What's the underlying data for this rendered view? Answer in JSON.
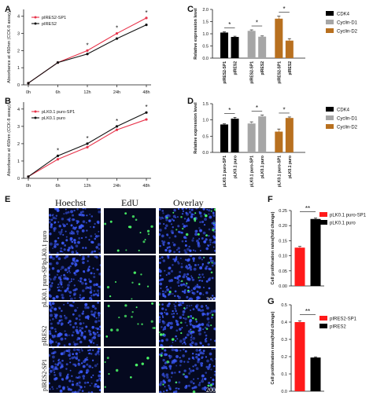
{
  "panel_letters": [
    "A",
    "B",
    "C",
    "D",
    "E",
    "F",
    "G"
  ],
  "chart_data": [
    {
      "id": "A",
      "type": "line",
      "x": [
        "0h",
        "6h",
        "12h",
        "24h",
        "48h"
      ],
      "series": [
        {
          "name": "pIRES2-SP1",
          "values": [
            0.1,
            1.3,
            2.0,
            3.0,
            3.9
          ],
          "color": "#e8334a"
        },
        {
          "name": "pIRES2",
          "values": [
            0.1,
            1.3,
            1.8,
            2.7,
            3.5
          ],
          "color": "#111111"
        }
      ],
      "ylabel": "Absorbance at 450nm (CCK-8 assay)",
      "yticks": [
        0,
        1,
        2,
        3,
        4
      ],
      "ylim": [
        0,
        4.4
      ],
      "sig": [
        {
          "x": 2,
          "t": "*"
        },
        {
          "x": 3,
          "t": "*"
        },
        {
          "x": 4,
          "t": "*"
        }
      ],
      "legend": "top-left"
    },
    {
      "id": "B",
      "type": "line",
      "x": [
        "0h",
        "6h",
        "12h",
        "24h",
        "48h"
      ],
      "series": [
        {
          "name": "pLK0.1 puro-SP1",
          "values": [
            0.1,
            1.1,
            1.8,
            2.8,
            3.4
          ],
          "color": "#e8334a"
        },
        {
          "name": "pLK0.1 puro",
          "values": [
            0.1,
            1.3,
            2.0,
            3.0,
            3.8
          ],
          "color": "#111111"
        }
      ],
      "ylabel": "Absorbance at 450nm (CCK-8 assay)",
      "yticks": [
        0,
        1,
        2,
        3,
        4
      ],
      "ylim": [
        0,
        4.4
      ],
      "sig": [
        {
          "x": 1,
          "t": "*"
        },
        {
          "x": 2,
          "t": "*"
        },
        {
          "x": 3,
          "t": "*"
        },
        {
          "x": 4,
          "t": "*"
        }
      ],
      "legend": "top-left"
    },
    {
      "id": "C",
      "type": "bar",
      "categories": [
        "pIRES2-SP1",
        "pIRES2",
        "pIRES2-SP1",
        "pIRES2",
        "pIRES2-SP1",
        "pIRES2"
      ],
      "values": [
        1.05,
        0.87,
        1.12,
        0.88,
        1.62,
        0.72
      ],
      "errors": [
        0.03,
        0.03,
        0.04,
        0.03,
        0.1,
        0.08
      ],
      "colors": [
        "#000000",
        "#000000",
        "#a6a6a6",
        "#a6a6a6",
        "#b8701f",
        "#b8701f"
      ],
      "legend_entries": [
        {
          "name": "CDK4",
          "color": "#000000"
        },
        {
          "name": "Cyclin-D1",
          "color": "#a6a6a6"
        },
        {
          "name": "Cyclin-D2",
          "color": "#b8701f"
        }
      ],
      "ylabel": "Relative expression level",
      "yticks": [
        0.0,
        0.5,
        1.0,
        1.5,
        2.0
      ],
      "ylim": [
        0,
        2.0
      ],
      "sig": [
        {
          "pair": [
            0,
            1
          ],
          "t": "*"
        },
        {
          "pair": [
            2,
            3
          ],
          "t": "*"
        },
        {
          "pair": [
            4,
            5
          ],
          "t": "*"
        }
      ]
    },
    {
      "id": "D",
      "type": "bar",
      "categories": [
        "pLK0.1 puro-SP1",
        "pLK0.1 puro",
        "pLK0.1 puro-SP1",
        "pLK0.1 puro",
        "pLK0.1 puro-SP1",
        "pLK0.1 puro"
      ],
      "values": [
        0.86,
        1.04,
        0.89,
        1.11,
        0.64,
        1.06
      ],
      "errors": [
        0.02,
        0.04,
        0.05,
        0.04,
        0.08,
        0.03
      ],
      "colors": [
        "#000000",
        "#000000",
        "#a6a6a6",
        "#a6a6a6",
        "#b8701f",
        "#b8701f"
      ],
      "legend_entries": [
        {
          "name": "CDK4",
          "color": "#000000"
        },
        {
          "name": "Cyclin-D1",
          "color": "#a6a6a6"
        },
        {
          "name": "Cyclin-D2",
          "color": "#b8701f"
        }
      ],
      "ylabel": "Relative expression level",
      "yticks": [
        0.0,
        0.5,
        1.0,
        1.5
      ],
      "ylim": [
        0,
        1.5
      ],
      "sig": [
        {
          "pair": [
            0,
            1
          ],
          "t": "*"
        },
        {
          "pair": [
            2,
            3
          ],
          "t": "*"
        },
        {
          "pair": [
            4,
            5
          ],
          "t": "*"
        }
      ]
    },
    {
      "id": "F",
      "type": "bar",
      "categories": [
        "pLK0.1 puro-SP1",
        "pLK0.1 puro"
      ],
      "values": [
        0.127,
        0.222
      ],
      "errors": [
        0.004,
        0.003
      ],
      "colors": [
        "#ff1a1a",
        "#000000"
      ],
      "ylabel": "Cell proliferation rates(fold change)",
      "yticks": [
        0.0,
        0.05,
        0.1,
        0.15,
        0.2,
        0.25
      ],
      "ylim": [
        0,
        0.25
      ],
      "sig": [
        {
          "pair": [
            0,
            1
          ],
          "t": "**"
        }
      ],
      "legend": "top-right"
    },
    {
      "id": "G",
      "type": "bar",
      "categories": [
        "pIRES2-SP1",
        "pIRES2"
      ],
      "values": [
        0.4,
        0.195
      ],
      "errors": [
        0.007,
        0.004
      ],
      "colors": [
        "#ff1a1a",
        "#000000"
      ],
      "ylabel": "Cell proliferation rates(fold change)",
      "yticks": [
        0.0,
        0.1,
        0.2,
        0.3,
        0.4,
        0.5
      ],
      "ylim": [
        0,
        0.5
      ],
      "sig": [
        {
          "pair": [
            0,
            1
          ],
          "t": "**"
        }
      ],
      "legend": "top-right"
    }
  ],
  "microscopy": {
    "columns": [
      "Hoechst",
      "EdU",
      "Overlay"
    ],
    "rows": [
      "pLK0.1 puro",
      "pLK0.1 puro-SP1",
      "pIRES2",
      "pIRES2-SP1"
    ],
    "scale_bar": "200μm",
    "colors": {
      "hoechst": "#3d5cff",
      "edu": "#4dff6a",
      "background": "#05091f"
    }
  }
}
